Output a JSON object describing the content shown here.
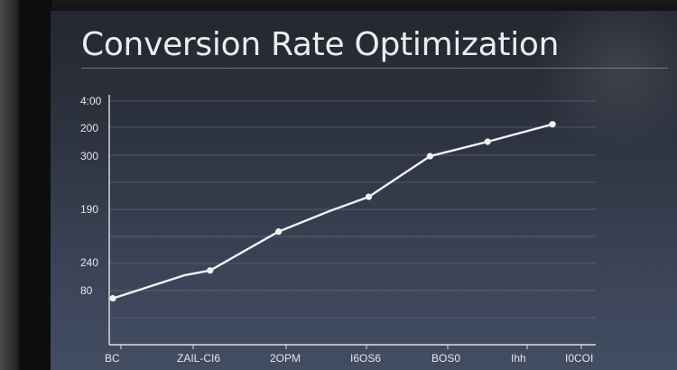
{
  "title": "Conversion Rate Optimization",
  "chart_data": {
    "type": "line",
    "title": "Conversion Rate Optimization",
    "y_tick_labels": [
      "4:00",
      "200",
      "300",
      "190",
      "240",
      "80"
    ],
    "x_tick_labels": [
      "BC",
      "ZAIL-CI6",
      "2OPM",
      "I6OS6",
      "BOS0",
      "Ihh",
      "I0COI"
    ],
    "series": [
      {
        "values": [
          80,
          120,
          128,
          195,
          230,
          255,
          325,
          350,
          380
        ]
      }
    ],
    "x_index": [
      0,
      1,
      1.35,
      2.3,
      3,
      3.55,
      4.4,
      5.2,
      6.1
    ],
    "markers_at": [
      0,
      2,
      3,
      5,
      6,
      7,
      8
    ],
    "ylim": [
      0,
      420
    ],
    "xlim": [
      -0.05,
      6.7
    ],
    "grid": true,
    "colors": {
      "line": "#f2f2f2",
      "grid": "#7f8899",
      "axis": "#e0e0e0"
    }
  }
}
